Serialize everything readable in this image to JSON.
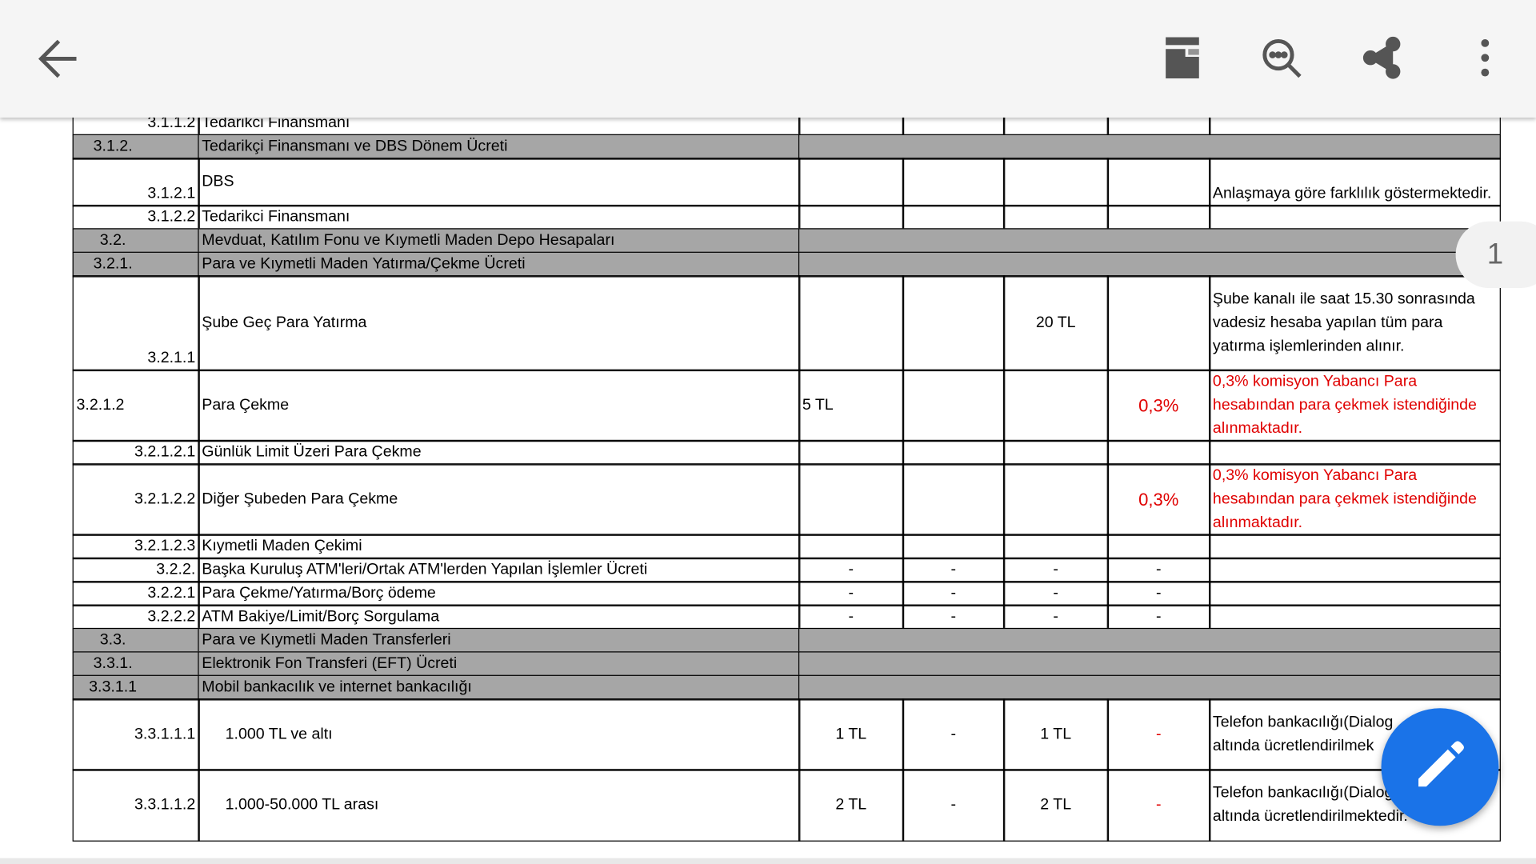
{
  "page_indicator": "1",
  "table": {
    "rows": [
      {
        "code": "3.1.1.2",
        "name": "Tedarikci Finansmanı"
      },
      {
        "code": "3.1.2.",
        "name": "Tedarikçi Finansmanı ve DBS Dönem Ücreti",
        "section": true
      },
      {
        "code": "3.1.2.1",
        "name": "DBS",
        "note": [
          "Anlaşmaya göre farklılık göstermektedir."
        ]
      },
      {
        "code": "3.1.2.2",
        "name": "Tedarikci Finansmanı"
      },
      {
        "code": "3.2.",
        "name": "Mevduat, Katılım Fonu ve Kıymetli Maden Depo Hesapaları",
        "section": true
      },
      {
        "code": "3.2.1.",
        "name": "Para ve Kıymetli Maden Yatırma/Çekme Ücreti",
        "section": true
      },
      {
        "code": "3.2.1.1",
        "name": "Şube Geç Para Yatırma",
        "cells": [
          null,
          null,
          "20 TL",
          null
        ],
        "note": [
          "Şube kanalı ile saat 15.30 sonrasında",
          "vadesiz hesaba yapılan tüm para",
          "yatırma işlemlerinden alınır."
        ]
      },
      {
        "code": "3.2.1.2",
        "name": "Para Çekme",
        "cells": [
          "5 TL",
          null,
          null,
          {
            "text": "0,3%",
            "color": "#e00000"
          }
        ],
        "note": [
          "0,3% komisyon Yabancı Para",
          "hesabından para çekmek istendiğinde",
          "alınmaktadır."
        ],
        "note_color": "#e00000"
      },
      {
        "code": "3.2.1.2.1",
        "name": "Günlük Limit Üzeri Para Çekme"
      },
      {
        "code": "3.2.1.2.2",
        "name": "Diğer Şubeden Para Çekme",
        "cells": [
          null,
          null,
          null,
          {
            "text": "0,3%",
            "color": "#e00000"
          }
        ],
        "note": [
          "0,3% komisyon Yabancı Para",
          "hesabından para çekmek istendiğinde",
          "alınmaktadır."
        ],
        "note_color": "#e00000"
      },
      {
        "code": "3.2.1.2.3",
        "name": "Kıymetli Maden Çekimi"
      },
      {
        "code": "3.2.2.",
        "name": "Başka Kuruluş ATM'leri/Ortak ATM'lerden Yapılan İşlemler Ücreti",
        "cells": [
          "-",
          "-",
          "-",
          "-"
        ]
      },
      {
        "code": "3.2.2.1",
        "name": "Para Çekme/Yatırma/Borç ödeme",
        "cells": [
          "-",
          "-",
          "-",
          "-"
        ]
      },
      {
        "code": "3.2.2.2",
        "name": "ATM Bakiye/Limit/Borç Sorgulama",
        "cells": [
          "-",
          "-",
          "-",
          "-"
        ]
      },
      {
        "code": "3.3.",
        "name": "Para ve Kıymetli Maden Transferleri",
        "section": true
      },
      {
        "code": "3.3.1.",
        "name": "Elektronik Fon Transferi (EFT) Ücreti",
        "section": true
      },
      {
        "code": "3.3.1.1",
        "name": "Mobil bankacılık ve internet bankacılığı",
        "section": true
      },
      {
        "code": "3.3.1.1.1",
        "name": "1.000 TL ve altı",
        "cells": [
          "1 TL",
          "-",
          "1 TL",
          {
            "text": "-",
            "color": "#e00000"
          }
        ],
        "note": [
          "Telefon bankacılığı(Dialog",
          "altında ücretlendirilmek"
        ]
      },
      {
        "code": "3.3.1.1.2",
        "name": "1.000-50.000 TL arası",
        "cells": [
          "2 TL",
          "-",
          "2 TL",
          {
            "text": "-",
            "color": "#e00000"
          }
        ],
        "note": [
          "Telefon bankacılığı(Dialog",
          "altında ücretlendirilmektedir."
        ]
      }
    ]
  }
}
